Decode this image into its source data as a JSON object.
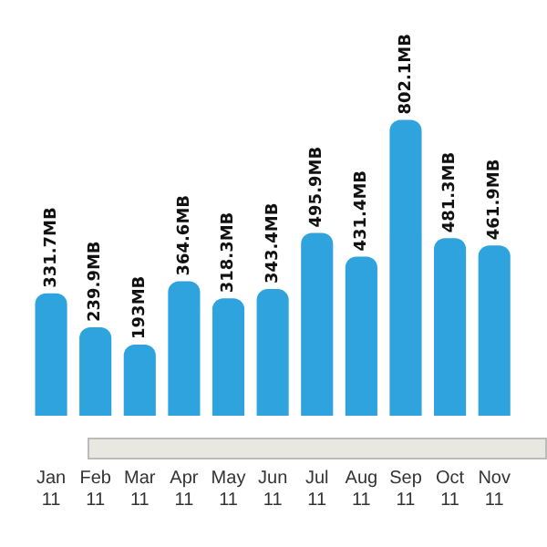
{
  "chart_data": {
    "type": "bar",
    "categories": [
      "Jan 11",
      "Feb 11",
      "Mar 11",
      "Apr 11",
      "May 11",
      "Jun 11",
      "Jul 11",
      "Aug 11",
      "Sep 11",
      "Oct 11",
      "Nov 11"
    ],
    "values": [
      331.7,
      239.9,
      193,
      364.6,
      318.3,
      343.4,
      495.9,
      431.4,
      802.1,
      481.3,
      461.9
    ],
    "value_labels": [
      "331.7MB",
      "239.9MB",
      "193MB",
      "364.6MB",
      "318.3MB",
      "343.4MB",
      "495.9MB",
      "431.4MB",
      "802.1MB",
      "481.3MB",
      "461.9MB"
    ],
    "color": "#2ea3dd",
    "relative": false
  }
}
